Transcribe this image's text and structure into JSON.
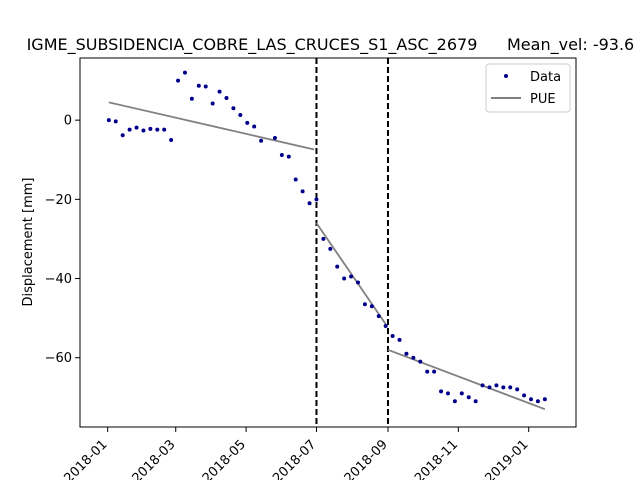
{
  "chart_data": {
    "type": "scatter",
    "title": "IGME_SUBSIDENCIA_COBRE_LAS_CRUCES_S1_ASC_2679",
    "title_right": "Mean_vel: -93.6",
    "xlabel": "",
    "ylabel": "Displacement [mm]",
    "xlim": [
      "2017-12-08",
      "2019-02-11"
    ],
    "ylim": [
      -77.5,
      15.7
    ],
    "x_ticks": [
      "2018-01",
      "2018-03",
      "2018-05",
      "2018-07",
      "2018-09",
      "2018-11",
      "2019-01"
    ],
    "y_ticks": [
      0,
      -20,
      -40,
      -60
    ],
    "legend_position": "top-right",
    "grid": false,
    "breakpoints": [
      "2018-07-01",
      "2018-09-01"
    ],
    "series": [
      {
        "name": "Data",
        "kind": "points",
        "color": "#00008b",
        "points": [
          [
            "2018-01-02",
            0.0
          ],
          [
            "2018-01-08",
            -0.3
          ],
          [
            "2018-01-14",
            -3.8
          ],
          [
            "2018-01-20",
            -2.4
          ],
          [
            "2018-01-26",
            -1.9
          ],
          [
            "2018-02-01",
            -2.6
          ],
          [
            "2018-02-07",
            -2.2
          ],
          [
            "2018-02-13",
            -2.4
          ],
          [
            "2018-02-19",
            -2.4
          ],
          [
            "2018-02-25",
            -5.0
          ],
          [
            "2018-03-03",
            10.0
          ],
          [
            "2018-03-09",
            12.0
          ],
          [
            "2018-03-15",
            5.4
          ],
          [
            "2018-03-21",
            8.7
          ],
          [
            "2018-03-27",
            8.5
          ],
          [
            "2018-04-02",
            4.2
          ],
          [
            "2018-04-08",
            7.2
          ],
          [
            "2018-04-14",
            5.6
          ],
          [
            "2018-04-20",
            3.0
          ],
          [
            "2018-04-26",
            1.3
          ],
          [
            "2018-05-02",
            -0.7
          ],
          [
            "2018-05-08",
            -1.6
          ],
          [
            "2018-05-14",
            -5.2
          ],
          [
            "2018-05-26",
            -4.5
          ],
          [
            "2018-06-01",
            -8.8
          ],
          [
            "2018-06-07",
            -9.2
          ],
          [
            "2018-06-13",
            -15.0
          ],
          [
            "2018-06-19",
            -18.0
          ],
          [
            "2018-06-25",
            -21.0
          ],
          [
            "2018-07-01",
            -20.0
          ],
          [
            "2018-07-07",
            -30.0
          ],
          [
            "2018-07-13",
            -32.5
          ],
          [
            "2018-07-19",
            -37.0
          ],
          [
            "2018-07-25",
            -40.0
          ],
          [
            "2018-07-31",
            -39.5
          ],
          [
            "2018-08-06",
            -41.0
          ],
          [
            "2018-08-12",
            -46.5
          ],
          [
            "2018-08-18",
            -47.0
          ],
          [
            "2018-08-24",
            -49.5
          ],
          [
            "2018-08-30",
            -52.0
          ],
          [
            "2018-09-05",
            -54.5
          ],
          [
            "2018-09-11",
            -55.5
          ],
          [
            "2018-09-17",
            -59.0
          ],
          [
            "2018-09-23",
            -60.0
          ],
          [
            "2018-09-29",
            -61.0
          ],
          [
            "2018-10-05",
            -63.5
          ],
          [
            "2018-10-11",
            -63.5
          ],
          [
            "2018-10-17",
            -68.5
          ],
          [
            "2018-10-23",
            -69.0
          ],
          [
            "2018-10-29",
            -71.0
          ],
          [
            "2018-11-04",
            -69.0
          ],
          [
            "2018-11-10",
            -70.0
          ],
          [
            "2018-11-16",
            -71.0
          ],
          [
            "2018-11-22",
            -67.0
          ],
          [
            "2018-11-28",
            -67.5
          ],
          [
            "2018-12-04",
            -67.0
          ],
          [
            "2018-12-10",
            -67.5
          ],
          [
            "2018-12-16",
            -67.5
          ],
          [
            "2018-12-22",
            -68.0
          ],
          [
            "2018-12-28",
            -69.5
          ],
          [
            "2019-01-03",
            -70.5
          ],
          [
            "2019-01-09",
            -71.0
          ],
          [
            "2019-01-15",
            -70.5
          ]
        ]
      },
      {
        "name": "PUE",
        "kind": "segments",
        "color": "#808080",
        "segments": [
          [
            [
              "2018-01-02",
              4.5
            ],
            [
              "2018-06-29",
              -7.4
            ]
          ],
          [
            [
              "2018-07-01",
              -26.0
            ],
            [
              "2018-08-30",
              -51.5
            ]
          ],
          [
            [
              "2018-09-01",
              -58.0
            ],
            [
              "2019-01-15",
              -73.0
            ]
          ]
        ]
      }
    ]
  }
}
